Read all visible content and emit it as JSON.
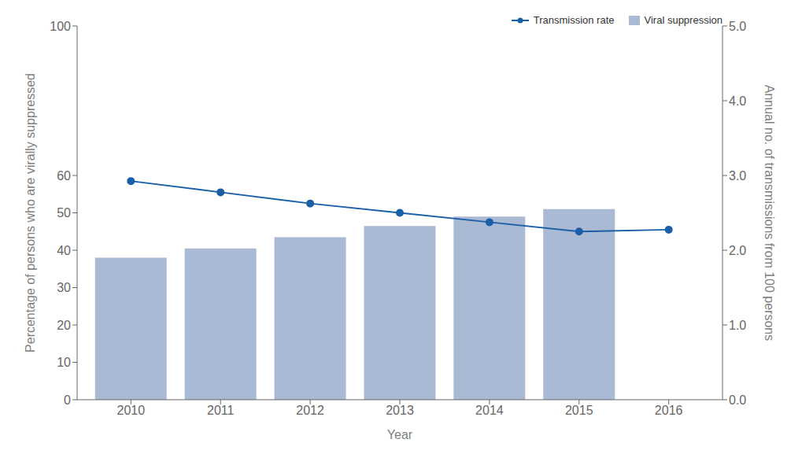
{
  "chart_data": {
    "type": "bar",
    "x": [
      2010,
      2011,
      2012,
      2013,
      2014,
      2015,
      2016
    ],
    "xlabel": "Year",
    "ylabel": "Percentage of persons who are virally suppressed",
    "y2label": "Annual no. of transmissions from 100 persons",
    "xlim": [
      2009.4,
      2016.6
    ],
    "xticks": [
      2010,
      2011,
      2012,
      2013,
      2014,
      2015,
      2016
    ],
    "ylim": [
      0,
      100
    ],
    "yticks": [
      0,
      10,
      20,
      30,
      40,
      50,
      60,
      100
    ],
    "y2lim": [
      0.0,
      5.0
    ],
    "y2ticks": [
      {
        "value": 0,
        "label": "0.0"
      },
      {
        "value": 1,
        "label": "1.0"
      },
      {
        "value": 2,
        "label": "2.0"
      },
      {
        "value": 3,
        "label": "3.0"
      },
      {
        "value": 4,
        "label": "4.0"
      },
      {
        "value": 5,
        "label": "5.0"
      }
    ],
    "grid": false,
    "legend": "upper right",
    "series": [
      {
        "name": "Transmission rate",
        "type": "line",
        "color": "#1a5fa8",
        "marker": "circle",
        "values": [
          58.5,
          55.5,
          52.5,
          50.0,
          47.5,
          45.0,
          45.5
        ]
      },
      {
        "name": "Viral suppression",
        "type": "bar",
        "color": "#aab9d4",
        "values": [
          38.0,
          40.5,
          43.5,
          46.5,
          49.0,
          51.0,
          null
        ]
      }
    ]
  }
}
